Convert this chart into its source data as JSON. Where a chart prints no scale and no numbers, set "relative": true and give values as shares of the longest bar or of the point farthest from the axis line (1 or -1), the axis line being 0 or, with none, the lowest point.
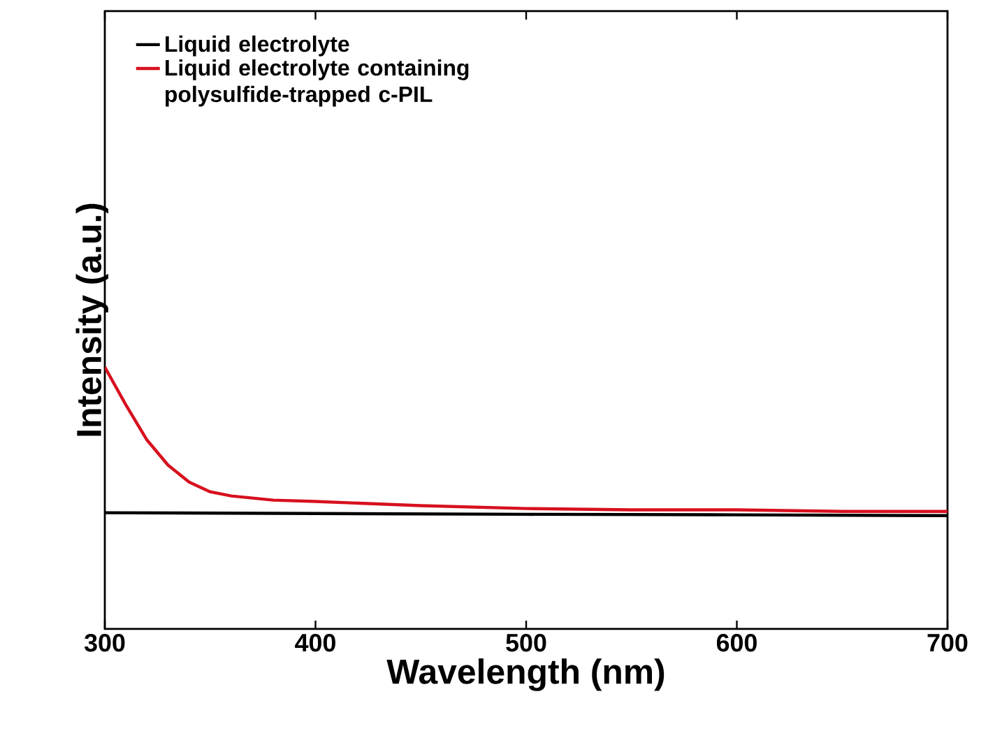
{
  "chart_data": {
    "type": "line",
    "xlabel": "Wavelength (nm)",
    "ylabel": "Intensity (a.u.)",
    "relative": true,
    "xlim": [
      300,
      700
    ],
    "xticks": [
      300,
      400,
      500,
      600,
      700
    ],
    "legend": "top left",
    "series": [
      {
        "name": "Liquid electrolyte",
        "color": "#000000",
        "x": [
          300,
          400,
          500,
          600,
          700
        ],
        "values": [
          0.444,
          0.441,
          0.438,
          0.436,
          0.433
        ]
      },
      {
        "name": "Liquid electrolyte containing polysulfide-trapped c-PIL",
        "color": "#d7101e",
        "x": [
          300,
          310,
          320,
          330,
          340,
          350,
          360,
          380,
          400,
          450,
          500,
          550,
          600,
          650,
          700
        ],
        "values": [
          1,
          0.856,
          0.722,
          0.626,
          0.561,
          0.524,
          0.508,
          0.492,
          0.487,
          0.471,
          0.46,
          0.455,
          0.455,
          0.449,
          0.449
        ]
      }
    ]
  }
}
